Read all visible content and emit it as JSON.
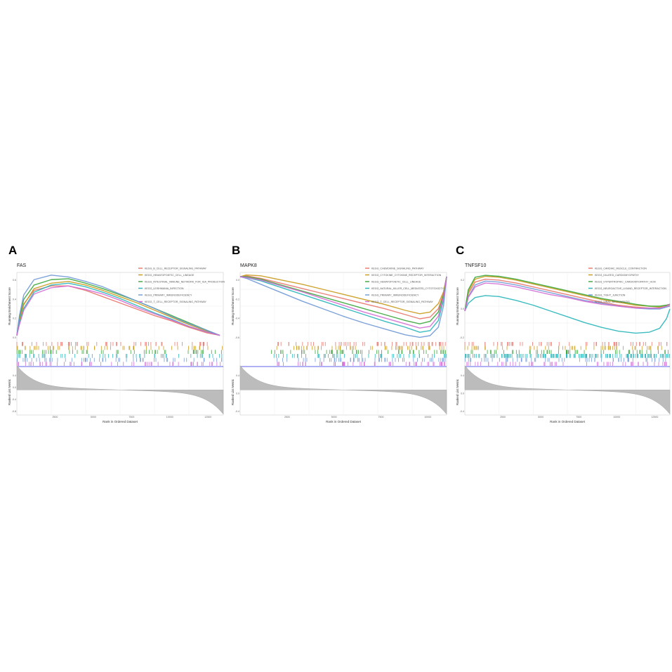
{
  "figure": {
    "panel_labels": [
      "A",
      "B",
      "C"
    ],
    "colors": [
      "#e8746a",
      "#c99a1c",
      "#3aa63a",
      "#27b5b9",
      "#6f98d6",
      "#d36bd3"
    ]
  },
  "chart_data": [
    {
      "type": "line",
      "panel": "A",
      "title": "FAS",
      "ylabel": "Running Enrichment Score",
      "xlabel": "Rank in Ordered Dataset",
      "rank_ylabel": "Ranked List Metric",
      "xlim": [
        0,
        12000
      ],
      "ylim": [
        -0.05,
        0.7
      ],
      "xticks": [
        "2500",
        "5000",
        "7500",
        "10000",
        "12500"
      ],
      "yticks": [
        "0.6",
        "0.4",
        "0.2",
        "0.0"
      ],
      "rank_yticks": [
        "0.4",
        "0.0",
        "-0.4",
        "-0.8"
      ],
      "series": [
        {
          "name": "KEGG_B_CELL_RECEPTOR_SIGNALING_PATHWAY",
          "x": [
            0,
            150,
            400,
            1000,
            2000,
            3000,
            4000,
            5000,
            6000,
            7000,
            8000,
            9000,
            10000,
            11000,
            11800
          ],
          "y": [
            0.0,
            0.18,
            0.35,
            0.5,
            0.55,
            0.55,
            0.5,
            0.43,
            0.36,
            0.29,
            0.22,
            0.16,
            0.09,
            0.03,
            0.0
          ]
        },
        {
          "name": "KEGG_HEMATOPOIETIC_CELL_LINEAGE",
          "x": [
            0,
            150,
            400,
            1000,
            2000,
            3000,
            4000,
            5000,
            6000,
            7000,
            8000,
            9000,
            10000,
            11000,
            11800
          ],
          "y": [
            0.0,
            0.16,
            0.34,
            0.52,
            0.58,
            0.6,
            0.56,
            0.5,
            0.43,
            0.36,
            0.28,
            0.2,
            0.12,
            0.05,
            0.0
          ]
        },
        {
          "name": "KEGG_INTESTINAL_IMMUNE_NETWORK_FOR_IGA_PRODUCTION",
          "x": [
            0,
            150,
            400,
            1000,
            2000,
            3000,
            4000,
            5000,
            6000,
            7000,
            8000,
            9000,
            10000,
            11000,
            11800
          ],
          "y": [
            0.0,
            0.2,
            0.4,
            0.56,
            0.62,
            0.63,
            0.58,
            0.52,
            0.45,
            0.38,
            0.3,
            0.22,
            0.14,
            0.06,
            0.0
          ]
        },
        {
          "name": "KEGG_LEISHMANIA_INFECTION",
          "x": [
            0,
            150,
            400,
            1000,
            2000,
            3000,
            4000,
            5000,
            6000,
            7000,
            8000,
            9000,
            10000,
            11000,
            11800
          ],
          "y": [
            0.0,
            0.14,
            0.3,
            0.48,
            0.56,
            0.58,
            0.54,
            0.48,
            0.41,
            0.33,
            0.25,
            0.18,
            0.1,
            0.04,
            0.0
          ]
        },
        {
          "name": "KEGG_PRIMARY_IMMUNODEFICIENCY",
          "x": [
            0,
            150,
            400,
            1000,
            2000,
            3000,
            4000,
            5000,
            6000,
            7000,
            8000,
            9000,
            10000,
            11000,
            11800
          ],
          "y": [
            0.0,
            0.22,
            0.45,
            0.62,
            0.67,
            0.65,
            0.6,
            0.54,
            0.46,
            0.38,
            0.3,
            0.21,
            0.13,
            0.06,
            0.0
          ]
        },
        {
          "name": "KEGG_T_CELL_RECEPTOR_SIGNALING_PATHWAY",
          "x": [
            0,
            150,
            400,
            1000,
            2000,
            3000,
            4000,
            5000,
            6000,
            7000,
            8000,
            9000,
            10000,
            11000,
            11800
          ],
          "y": [
            0.0,
            0.12,
            0.28,
            0.46,
            0.53,
            0.55,
            0.51,
            0.46,
            0.39,
            0.31,
            0.24,
            0.17,
            0.1,
            0.04,
            0.0
          ]
        }
      ]
    },
    {
      "type": "line",
      "panel": "B",
      "title": "MAPK8",
      "ylabel": "Running Enrichment Score",
      "xlabel": "Rank in Ordered Dataset",
      "rank_ylabel": "Ranked List Metric",
      "xlim": [
        0,
        10000
      ],
      "ylim": [
        -0.75,
        0.05
      ],
      "xticks": [
        "2500",
        "5000",
        "7500",
        "10000"
      ],
      "yticks": [
        "0.0",
        "-0.2",
        "-0.4",
        "-0.6"
      ],
      "rank_yticks": [
        "0.4",
        "0.0",
        "-0.4"
      ],
      "series": [
        {
          "name": "KEGG_CHEMOKINE_SIGNALING_PATHWAY",
          "x": [
            0,
            300,
            1000,
            2000,
            3000,
            4000,
            5000,
            6000,
            7000,
            8000,
            8700,
            9200,
            9600,
            9850,
            10000
          ],
          "y": [
            0.0,
            0.01,
            -0.02,
            -0.08,
            -0.14,
            -0.2,
            -0.26,
            -0.32,
            -0.38,
            -0.45,
            -0.5,
            -0.48,
            -0.38,
            -0.2,
            0.0
          ]
        },
        {
          "name": "KEGG_CYTOKINE_CYTOKINE_RECEPTOR_INTERACTION",
          "x": [
            0,
            300,
            1000,
            2000,
            3000,
            4000,
            5000,
            6000,
            7000,
            8000,
            8700,
            9200,
            9600,
            9850,
            10000
          ],
          "y": [
            0.0,
            0.02,
            0.01,
            -0.04,
            -0.09,
            -0.15,
            -0.21,
            -0.27,
            -0.33,
            -0.4,
            -0.44,
            -0.42,
            -0.32,
            -0.18,
            0.0
          ]
        },
        {
          "name": "KEGG_HEMATOPOIETIC_CELL_LINEAGE",
          "x": [
            0,
            300,
            1000,
            2000,
            3000,
            4000,
            5000,
            6000,
            7000,
            8000,
            8700,
            9200,
            9600,
            9850,
            10000
          ],
          "y": [
            0.0,
            0.0,
            -0.03,
            -0.1,
            -0.17,
            -0.24,
            -0.31,
            -0.38,
            -0.45,
            -0.52,
            -0.56,
            -0.53,
            -0.42,
            -0.22,
            0.0
          ]
        },
        {
          "name": "KEGG_NATURAL_KILLER_CELL_MEDIATED_CYTOTOXICITY",
          "x": [
            0,
            300,
            1000,
            2000,
            3000,
            4000,
            5000,
            6000,
            7000,
            8000,
            8700,
            9200,
            9600,
            9850,
            10000
          ],
          "y": [
            0.0,
            -0.01,
            -0.05,
            -0.13,
            -0.21,
            -0.29,
            -0.37,
            -0.45,
            -0.53,
            -0.6,
            -0.66,
            -0.64,
            -0.52,
            -0.28,
            0.0
          ]
        },
        {
          "name": "KEGG_PRIMARY_IMMUNODEFICIENCY",
          "x": [
            0,
            300,
            1000,
            2000,
            3000,
            4000,
            5000,
            6000,
            7000,
            8000,
            8700,
            9200,
            9600,
            9850,
            10000
          ],
          "y": [
            0.0,
            -0.02,
            -0.09,
            -0.19,
            -0.29,
            -0.38,
            -0.47,
            -0.55,
            -0.62,
            -0.69,
            -0.72,
            -0.7,
            -0.6,
            -0.35,
            0.0
          ]
        },
        {
          "name": "KEGG_T_CELL_RECEPTOR_SIGNALING_PATHWAY",
          "x": [
            0,
            300,
            1000,
            2000,
            3000,
            4000,
            5000,
            6000,
            7000,
            8000,
            8700,
            9200,
            9600,
            9850,
            10000
          ],
          "y": [
            0.0,
            -0.01,
            -0.04,
            -0.11,
            -0.18,
            -0.26,
            -0.34,
            -0.42,
            -0.49,
            -0.56,
            -0.61,
            -0.59,
            -0.47,
            -0.25,
            0.0
          ]
        }
      ]
    },
    {
      "type": "line",
      "panel": "C",
      "title": "TNFSF10",
      "ylabel": "Running Enrichment Score",
      "xlabel": "Rank in Ordered Dataset",
      "rank_ylabel": "Ranked List Metric",
      "xlim": [
        0,
        12000
      ],
      "ylim": [
        -0.3,
        0.4
      ],
      "xticks": [
        "2500",
        "5000",
        "7500",
        "10000",
        "12500"
      ],
      "yticks": [
        "0.2",
        "0.0",
        "-0.2"
      ],
      "rank_yticks": [
        "0.4",
        "0.0",
        "-0.4"
      ],
      "series": [
        {
          "name": "KEGG_CARDIAC_MUSCLE_CONTRACTION",
          "x": [
            0,
            200,
            600,
            1200,
            2000,
            3000,
            4000,
            5000,
            6000,
            7000,
            8000,
            9000,
            10000,
            10800,
            11400,
            11800,
            12000
          ],
          "y": [
            0.0,
            0.18,
            0.3,
            0.33,
            0.32,
            0.29,
            0.25,
            0.21,
            0.17,
            0.13,
            0.09,
            0.06,
            0.04,
            0.03,
            0.03,
            0.05,
            0.06
          ]
        },
        {
          "name": "KEGG_DILATED_CARDIOMYOPATHY",
          "x": [
            0,
            200,
            600,
            1200,
            2000,
            3000,
            4000,
            5000,
            6000,
            7000,
            8000,
            9000,
            10000,
            10800,
            11400,
            11800,
            12000
          ],
          "y": [
            0.0,
            0.2,
            0.33,
            0.36,
            0.35,
            0.32,
            0.28,
            0.24,
            0.2,
            0.16,
            0.12,
            0.09,
            0.06,
            0.05,
            0.04,
            0.06,
            0.07
          ]
        },
        {
          "name": "KEGG_HYPERTROPHIC_CARDIOMYOPATHY_HCM",
          "x": [
            0,
            200,
            600,
            1200,
            2000,
            3000,
            4000,
            5000,
            6000,
            7000,
            8000,
            9000,
            10000,
            10800,
            11400,
            11800,
            12000
          ],
          "y": [
            0.0,
            0.22,
            0.35,
            0.37,
            0.36,
            0.33,
            0.29,
            0.25,
            0.21,
            0.17,
            0.13,
            0.1,
            0.07,
            0.05,
            0.05,
            0.06,
            0.07
          ]
        },
        {
          "name": "KEGG_NEUROACTIVE_LIGAND_RECEPTOR_INTERACTION",
          "x": [
            0,
            200,
            600,
            1200,
            2000,
            3000,
            4000,
            5000,
            6000,
            7000,
            8000,
            9000,
            10000,
            10800,
            11400,
            11800,
            12000
          ],
          "y": [
            0.0,
            0.08,
            0.14,
            0.16,
            0.15,
            0.11,
            0.06,
            0.0,
            -0.06,
            -0.12,
            -0.17,
            -0.21,
            -0.23,
            -0.22,
            -0.18,
            -0.08,
            0.02
          ]
        },
        {
          "name": "KEGG_TIGHT_JUNCTION",
          "x": [
            0,
            200,
            600,
            1200,
            2000,
            3000,
            4000,
            5000,
            6000,
            7000,
            8000,
            9000,
            10000,
            10800,
            11400,
            11800,
            12000
          ],
          "y": [
            0.0,
            0.15,
            0.27,
            0.31,
            0.3,
            0.27,
            0.23,
            0.19,
            0.15,
            0.11,
            0.08,
            0.05,
            0.03,
            0.02,
            0.02,
            0.04,
            0.05
          ]
        },
        {
          "name": "KEGG_VIRAL_MYOCARDITIS",
          "x": [
            0,
            200,
            600,
            1200,
            2000,
            3000,
            4000,
            5000,
            6000,
            7000,
            8000,
            9000,
            10000,
            10800,
            11400,
            11800,
            12000
          ],
          "y": [
            0.0,
            0.14,
            0.25,
            0.29,
            0.28,
            0.25,
            0.21,
            0.17,
            0.14,
            0.1,
            0.07,
            0.05,
            0.03,
            0.03,
            0.03,
            0.05,
            0.07
          ]
        }
      ]
    }
  ]
}
